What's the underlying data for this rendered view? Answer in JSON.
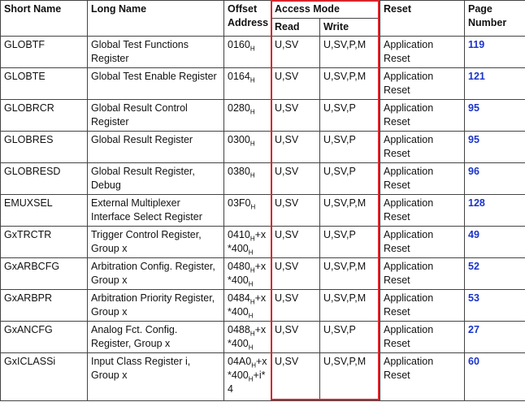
{
  "header": {
    "short": "Short Name",
    "long": "Long Name",
    "offset": "Offset Address",
    "access": "Access Mode",
    "read": "Read",
    "write": "Write",
    "reset": "Reset",
    "page": "Page Number"
  },
  "rows": [
    [
      "GLOBTF",
      "Global Test Functions Register",
      [
        "0160",
        "H"
      ],
      "U,SV",
      "U,SV,P,M",
      "Application Reset",
      119
    ],
    [
      "GLOBTE",
      "Global Test Enable Register",
      [
        "0164",
        "H"
      ],
      "U,SV",
      "U,SV,P,M",
      "Application Reset",
      121
    ],
    [
      "GLOBRCR",
      "Global Result Control Register",
      [
        "0280",
        "H"
      ],
      "U,SV",
      "U,SV,P",
      "Application Reset",
      95
    ],
    [
      "GLOBRES",
      "Global Result Register",
      [
        "0300",
        "H"
      ],
      "U,SV",
      "U,SV,P",
      "Application Reset",
      95
    ],
    [
      "GLOBRESD",
      "Global Result Register, Debug",
      [
        "0380",
        "H"
      ],
      "U,SV",
      "U,SV,P",
      "Application Reset",
      96
    ],
    [
      "EMUXSEL",
      "External Multiplexer Interface Select Register",
      [
        "03F0",
        "H"
      ],
      "U,SV",
      "U,SV,P,M",
      "Application Reset",
      128
    ],
    [
      "GxTRCTR",
      "Trigger Control Register, Group x",
      [
        "0410",
        "H",
        "+x *400",
        "H"
      ],
      "U,SV",
      "U,SV,P",
      "Application Reset",
      49
    ],
    [
      "GxARBCFG",
      "Arbitration Config. Register, Group x",
      [
        "0480",
        "H",
        "+x *400",
        "H"
      ],
      "U,SV",
      "U,SV,P,M",
      "Application Reset",
      52
    ],
    [
      "GxARBPR",
      "Arbitration Priority Register, Group x",
      [
        "0484",
        "H",
        "+x *400",
        "H"
      ],
      "U,SV",
      "U,SV,P,M",
      "Application Reset",
      53
    ],
    [
      "GxANCFG",
      "Analog Fct. Config. Register, Group x",
      [
        "0488",
        "H",
        "+x *400",
        "H"
      ],
      "U,SV",
      "U,SV,P",
      "Application Reset",
      27
    ],
    [
      "GxICLASSi",
      "Input Class Register i, Group x",
      [
        "04A0",
        "H",
        "+x *400",
        "H",
        "+i* 4"
      ],
      "U,SV",
      "U,SV,P,M",
      "Application Reset",
      60
    ]
  ]
}
